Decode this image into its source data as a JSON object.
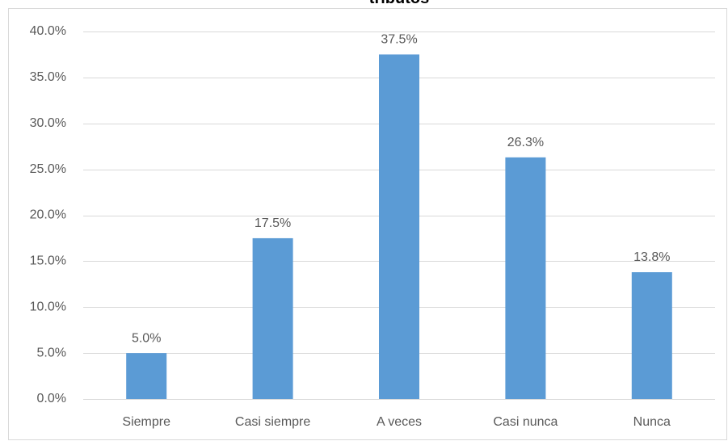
{
  "chart_data": {
    "type": "bar",
    "title": "tributos",
    "categories": [
      "Siempre",
      "Casi siempre",
      "A veces",
      "Casi nunca",
      "Nunca"
    ],
    "values": [
      5.0,
      17.5,
      37.5,
      26.3,
      13.8
    ],
    "value_labels": [
      "5.0%",
      "17.5%",
      "37.5%",
      "26.3%",
      "13.8%"
    ],
    "color": "#5b9bd5",
    "ylim": [
      0,
      40
    ],
    "yticks": [
      {
        "value": 0,
        "label": "0.0%"
      },
      {
        "value": 5,
        "label": "5.0%"
      },
      {
        "value": 10,
        "label": "10.0%"
      },
      {
        "value": 15,
        "label": "15.0%"
      },
      {
        "value": 20,
        "label": "20.0%"
      },
      {
        "value": 25,
        "label": "25.0%"
      },
      {
        "value": 30,
        "label": "30.0%"
      },
      {
        "value": 35,
        "label": "35.0%"
      },
      {
        "value": 40,
        "label": "40.0%"
      }
    ],
    "grid": true
  }
}
